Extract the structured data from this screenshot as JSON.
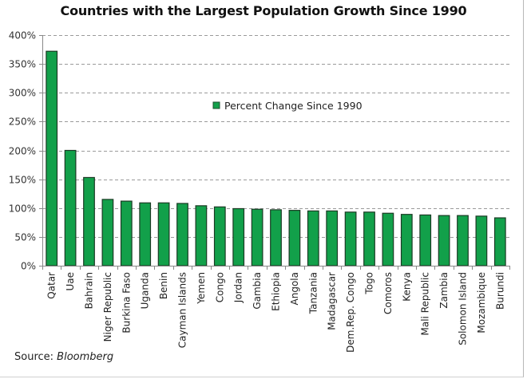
{
  "chart_data": {
    "type": "bar",
    "title": "Countries with the Largest Population Growth Since 1990",
    "xlabel": "",
    "ylabel": "",
    "ylim": [
      0,
      400
    ],
    "yticks": [
      0,
      50,
      100,
      150,
      200,
      250,
      300,
      350,
      400
    ],
    "ytick_labels": [
      "0%",
      "50%",
      "100%",
      "150%",
      "200%",
      "250%",
      "300%",
      "350%",
      "400%"
    ],
    "grid": true,
    "legend_position": "top-center",
    "categories": [
      "Qatar",
      "Uae",
      "Bahrain",
      "Niger Republic",
      "Burkina Faso",
      "Uganda",
      "Benin",
      "Cayman Islands",
      "Yemen",
      "Congo",
      "Jordan",
      "Gambia",
      "Ethiopia",
      "Angola",
      "Tanzania",
      "Madagascar",
      "Dem.Rep. Congo",
      "Togo",
      "Comoros",
      "Kenya",
      "Mali Republic",
      "Zambia",
      "Solomon Island",
      "Mozambique",
      "Burundi"
    ],
    "series": [
      {
        "name": "Percent Change Since 1990",
        "color": "#12a04a",
        "values": [
          372,
          200,
          153,
          115,
          112,
          109,
          109,
          108,
          104,
          102,
          99,
          98,
          97,
          96,
          95,
          95,
          93,
          93,
          91,
          89,
          88,
          87,
          87,
          86,
          83
        ]
      }
    ],
    "source_prefix": "Source: ",
    "source_name": "Bloomberg"
  }
}
